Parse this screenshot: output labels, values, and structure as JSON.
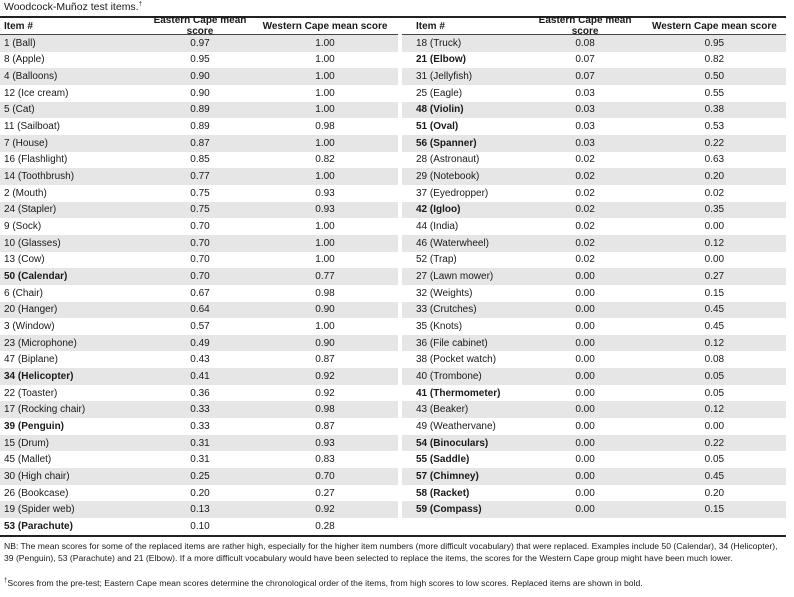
{
  "title": "Woodcock-Muñoz test items.",
  "title_mark": "†",
  "headers": {
    "item": "Item #",
    "eastern": "Eastern Cape mean score",
    "western": "Western Cape mean score"
  },
  "left_rows": [
    {
      "item": "1 (Ball)",
      "ec": "0.97",
      "wc": "1.00",
      "replaced": false
    },
    {
      "item": "8 (Apple)",
      "ec": "0.95",
      "wc": "1.00",
      "replaced": false
    },
    {
      "item": "4 (Balloons)",
      "ec": "0.90",
      "wc": "1.00",
      "replaced": false
    },
    {
      "item": "12 (Ice cream)",
      "ec": "0.90",
      "wc": "1.00",
      "replaced": false
    },
    {
      "item": "5 (Cat)",
      "ec": "0.89",
      "wc": "1.00",
      "replaced": false
    },
    {
      "item": "11 (Sailboat)",
      "ec": "0.89",
      "wc": "0.98",
      "replaced": false
    },
    {
      "item": "7 (House)",
      "ec": "0.87",
      "wc": "1.00",
      "replaced": false
    },
    {
      "item": "16 (Flashlight)",
      "ec": "0.85",
      "wc": "0.82",
      "replaced": false
    },
    {
      "item": "14 (Toothbrush)",
      "ec": "0.77",
      "wc": "1.00",
      "replaced": false
    },
    {
      "item": "2 (Mouth)",
      "ec": "0.75",
      "wc": "0.93",
      "replaced": false
    },
    {
      "item": "24 (Stapler)",
      "ec": "0.75",
      "wc": "0.93",
      "replaced": false
    },
    {
      "item": "9 (Sock)",
      "ec": "0.70",
      "wc": "1.00",
      "replaced": false
    },
    {
      "item": "10 (Glasses)",
      "ec": "0.70",
      "wc": "1.00",
      "replaced": false
    },
    {
      "item": "13 (Cow)",
      "ec": "0.70",
      "wc": "1.00",
      "replaced": false
    },
    {
      "item": "50 (Calendar)",
      "ec": "0.70",
      "wc": "0.77",
      "replaced": true
    },
    {
      "item": "6 (Chair)",
      "ec": "0.67",
      "wc": "0.98",
      "replaced": false
    },
    {
      "item": "20 (Hanger)",
      "ec": "0.64",
      "wc": "0.90",
      "replaced": false
    },
    {
      "item": "3 (Window)",
      "ec": "0.57",
      "wc": "1.00",
      "replaced": false
    },
    {
      "item": "23 (Microphone)",
      "ec": "0.49",
      "wc": "0.90",
      "replaced": false
    },
    {
      "item": "47 (Biplane)",
      "ec": "0.43",
      "wc": "0.87",
      "replaced": false
    },
    {
      "item": "34 (Helicopter)",
      "ec": "0.41",
      "wc": "0.92",
      "replaced": true
    },
    {
      "item": "22 (Toaster)",
      "ec": "0.36",
      "wc": "0.92",
      "replaced": false
    },
    {
      "item": "17 (Rocking chair)",
      "ec": "0.33",
      "wc": "0.98",
      "replaced": false
    },
    {
      "item": "39 (Penguin)",
      "ec": "0.33",
      "wc": "0.87",
      "replaced": true
    },
    {
      "item": "15 (Drum)",
      "ec": "0.31",
      "wc": "0.93",
      "replaced": false
    },
    {
      "item": "45 (Mallet)",
      "ec": "0.31",
      "wc": "0.83",
      "replaced": false
    },
    {
      "item": "30 (High chair)",
      "ec": "0.25",
      "wc": "0.70",
      "replaced": false
    },
    {
      "item": "26 (Bookcase)",
      "ec": "0.20",
      "wc": "0.27",
      "replaced": false
    },
    {
      "item": "19 (Spider web)",
      "ec": "0.13",
      "wc": "0.92",
      "replaced": false
    },
    {
      "item": "53 (Parachute)",
      "ec": "0.10",
      "wc": "0.28",
      "replaced": true
    }
  ],
  "right_rows": [
    {
      "item": "18 (Truck)",
      "ec": "0.08",
      "wc": "0.95",
      "replaced": false
    },
    {
      "item": "21 (Elbow)",
      "ec": "0.07",
      "wc": "0.82",
      "replaced": true
    },
    {
      "item": "31 (Jellyfish)",
      "ec": "0.07",
      "wc": "0.50",
      "replaced": false
    },
    {
      "item": "25 (Eagle)",
      "ec": "0.03",
      "wc": "0.55",
      "replaced": false
    },
    {
      "item": "48 (Violin)",
      "ec": "0.03",
      "wc": "0.38",
      "replaced": true
    },
    {
      "item": "51 (Oval)",
      "ec": "0.03",
      "wc": "0.53",
      "replaced": true
    },
    {
      "item": "56 (Spanner)",
      "ec": "0.03",
      "wc": "0.22",
      "replaced": true
    },
    {
      "item": "28 (Astronaut)",
      "ec": "0.02",
      "wc": "0.63",
      "replaced": false
    },
    {
      "item": "29 (Notebook)",
      "ec": "0.02",
      "wc": "0.20",
      "replaced": false
    },
    {
      "item": "37 (Eyedropper)",
      "ec": "0.02",
      "wc": "0.02",
      "replaced": false
    },
    {
      "item": "42 (Igloo)",
      "ec": "0.02",
      "wc": "0.35",
      "replaced": true
    },
    {
      "item": "44 (India)",
      "ec": "0.02",
      "wc": "0.00",
      "replaced": false
    },
    {
      "item": "46 (Waterwheel)",
      "ec": "0.02",
      "wc": "0.12",
      "replaced": false
    },
    {
      "item": "52 (Trap)",
      "ec": "0.02",
      "wc": "0.00",
      "replaced": false
    },
    {
      "item": "27 (Lawn mower)",
      "ec": "0.00",
      "wc": "0.27",
      "replaced": false
    },
    {
      "item": "32 (Weights)",
      "ec": "0.00",
      "wc": "0.15",
      "replaced": false
    },
    {
      "item": "33 (Crutches)",
      "ec": "0.00",
      "wc": "0.45",
      "replaced": false
    },
    {
      "item": "35 (Knots)",
      "ec": "0.00",
      "wc": "0.45",
      "replaced": false
    },
    {
      "item": "36 (File cabinet)",
      "ec": "0.00",
      "wc": "0.12",
      "replaced": false
    },
    {
      "item": "38 (Pocket watch)",
      "ec": "0.00",
      "wc": "0.08",
      "replaced": false
    },
    {
      "item": "40 (Trombone)",
      "ec": "0.00",
      "wc": "0.05",
      "replaced": false
    },
    {
      "item": "41 (Thermometer)",
      "ec": "0.00",
      "wc": "0.05",
      "replaced": true
    },
    {
      "item": "43 (Beaker)",
      "ec": "0.00",
      "wc": "0.12",
      "replaced": false
    },
    {
      "item": "49 (Weathervane)",
      "ec": "0.00",
      "wc": "0.00",
      "replaced": false
    },
    {
      "item": "54 (Binoculars)",
      "ec": "0.00",
      "wc": "0.22",
      "replaced": true
    },
    {
      "item": "55 (Saddle)",
      "ec": "0.00",
      "wc": "0.05",
      "replaced": true
    },
    {
      "item": "57 (Chimney)",
      "ec": "0.00",
      "wc": "0.45",
      "replaced": true
    },
    {
      "item": "58 (Racket)",
      "ec": "0.00",
      "wc": "0.20",
      "replaced": true
    },
    {
      "item": "59 (Compass)",
      "ec": "0.00",
      "wc": "0.15",
      "replaced": true
    }
  ],
  "note": "NB: The mean scores for some of the replaced items are rather high, especially for the higher item numbers (more difficult vocabulary) that were replaced. Examples include 50 (Calendar), 34 (Helicopter), 39 (Penguin), 53 (Parachute) and 21 (Elbow). If a more difficult vocabulary would have been selected to replace the items, the scores for the Western Cape group might have been much lower.",
  "footnote_mark": "†",
  "footnote": "Scores from the pre-test; Eastern Cape mean scores determine the chronological order of the items, from high scores to low scores. Replaced items are shown in bold."
}
